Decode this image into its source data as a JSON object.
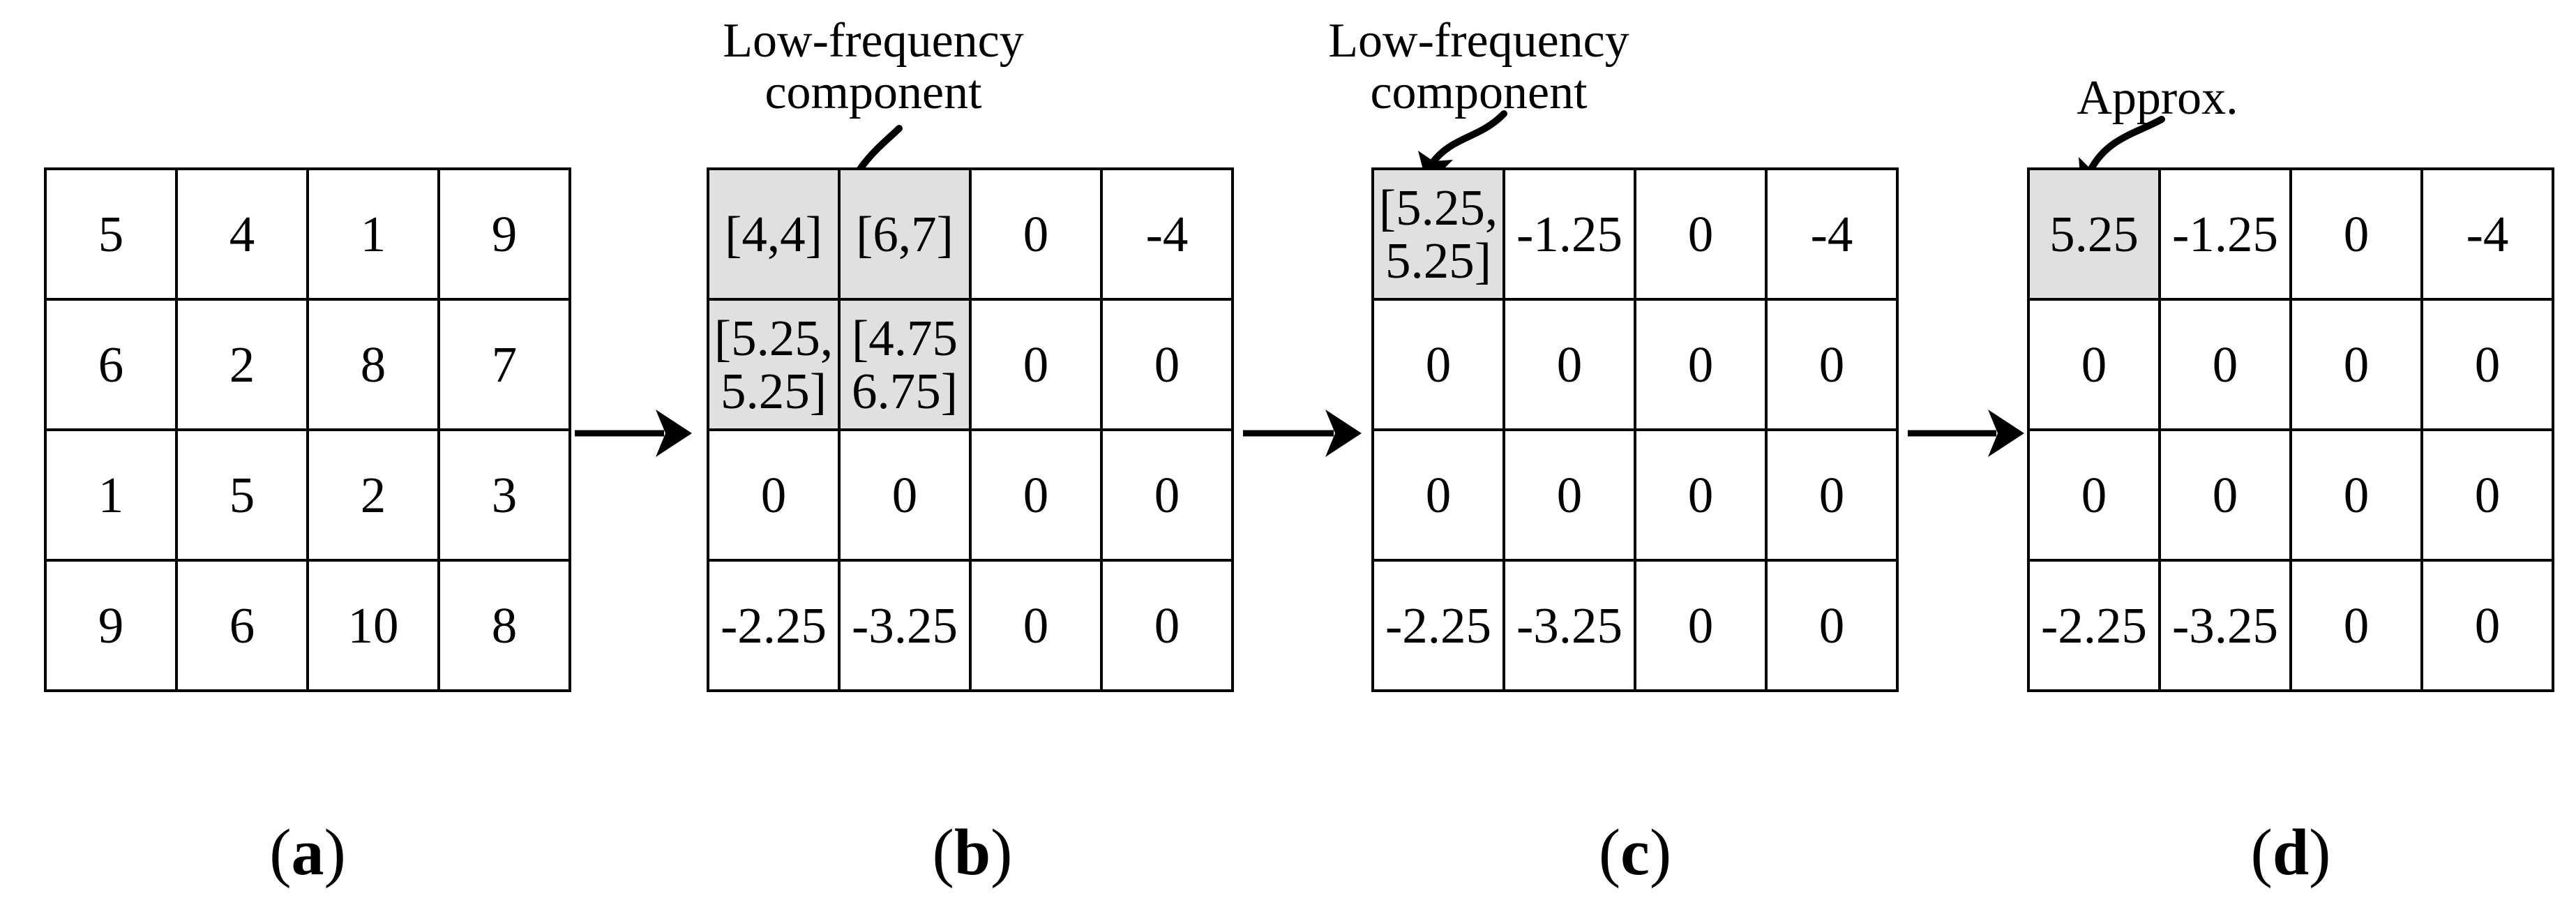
{
  "figure": {
    "background_color": "#ffffff",
    "line_color": "#000000",
    "highlight_color": "#e0e0e0"
  },
  "panels": [
    {
      "caption": {
        "open": "(",
        "letter": "a",
        "close": ")"
      },
      "cells": [
        [
          "5",
          "4",
          "1",
          "9"
        ],
        [
          "6",
          "2",
          "8",
          "7"
        ],
        [
          "1",
          "5",
          "2",
          "3"
        ],
        [
          "9",
          "6",
          "10",
          "8"
        ]
      ],
      "shaded": []
    },
    {
      "caption": {
        "open": "(",
        "letter": "b",
        "close": ")"
      },
      "annotation": {
        "lines": [
          "Low-frequency",
          "component"
        ]
      },
      "cells": [
        [
          "[4,4]",
          "[6,7]",
          "0",
          "-4"
        ],
        [
          "[5.25,\n5.25]",
          "[4.75\n6.75]",
          "0",
          "0"
        ],
        [
          "0",
          "0",
          "0",
          "0"
        ],
        [
          "-2.25",
          "-3.25",
          "0",
          "0"
        ]
      ],
      "shaded": [
        [
          0,
          0
        ],
        [
          0,
          1
        ],
        [
          1,
          0
        ],
        [
          1,
          1
        ]
      ]
    },
    {
      "caption": {
        "open": "(",
        "letter": "c",
        "close": ")"
      },
      "annotation": {
        "lines": [
          "Low-frequency",
          "component"
        ]
      },
      "cells": [
        [
          "[5.25,\n5.25]",
          "-1.25",
          "0",
          "-4"
        ],
        [
          "0",
          "0",
          "0",
          "0"
        ],
        [
          "0",
          "0",
          "0",
          "0"
        ],
        [
          "-2.25",
          "-3.25",
          "0",
          "0"
        ]
      ],
      "shaded": [
        [
          0,
          0
        ]
      ]
    },
    {
      "caption": {
        "open": "(",
        "letter": "d",
        "close": ")"
      },
      "annotation": {
        "lines": [
          "Approx."
        ]
      },
      "cells": [
        [
          "5.25",
          "-1.25",
          "0",
          "-4"
        ],
        [
          "0",
          "0",
          "0",
          "0"
        ],
        [
          "0",
          "0",
          "0",
          "0"
        ],
        [
          "-2.25",
          "-3.25",
          "0",
          "0"
        ]
      ],
      "shaded": [
        [
          0,
          0
        ]
      ]
    }
  ]
}
